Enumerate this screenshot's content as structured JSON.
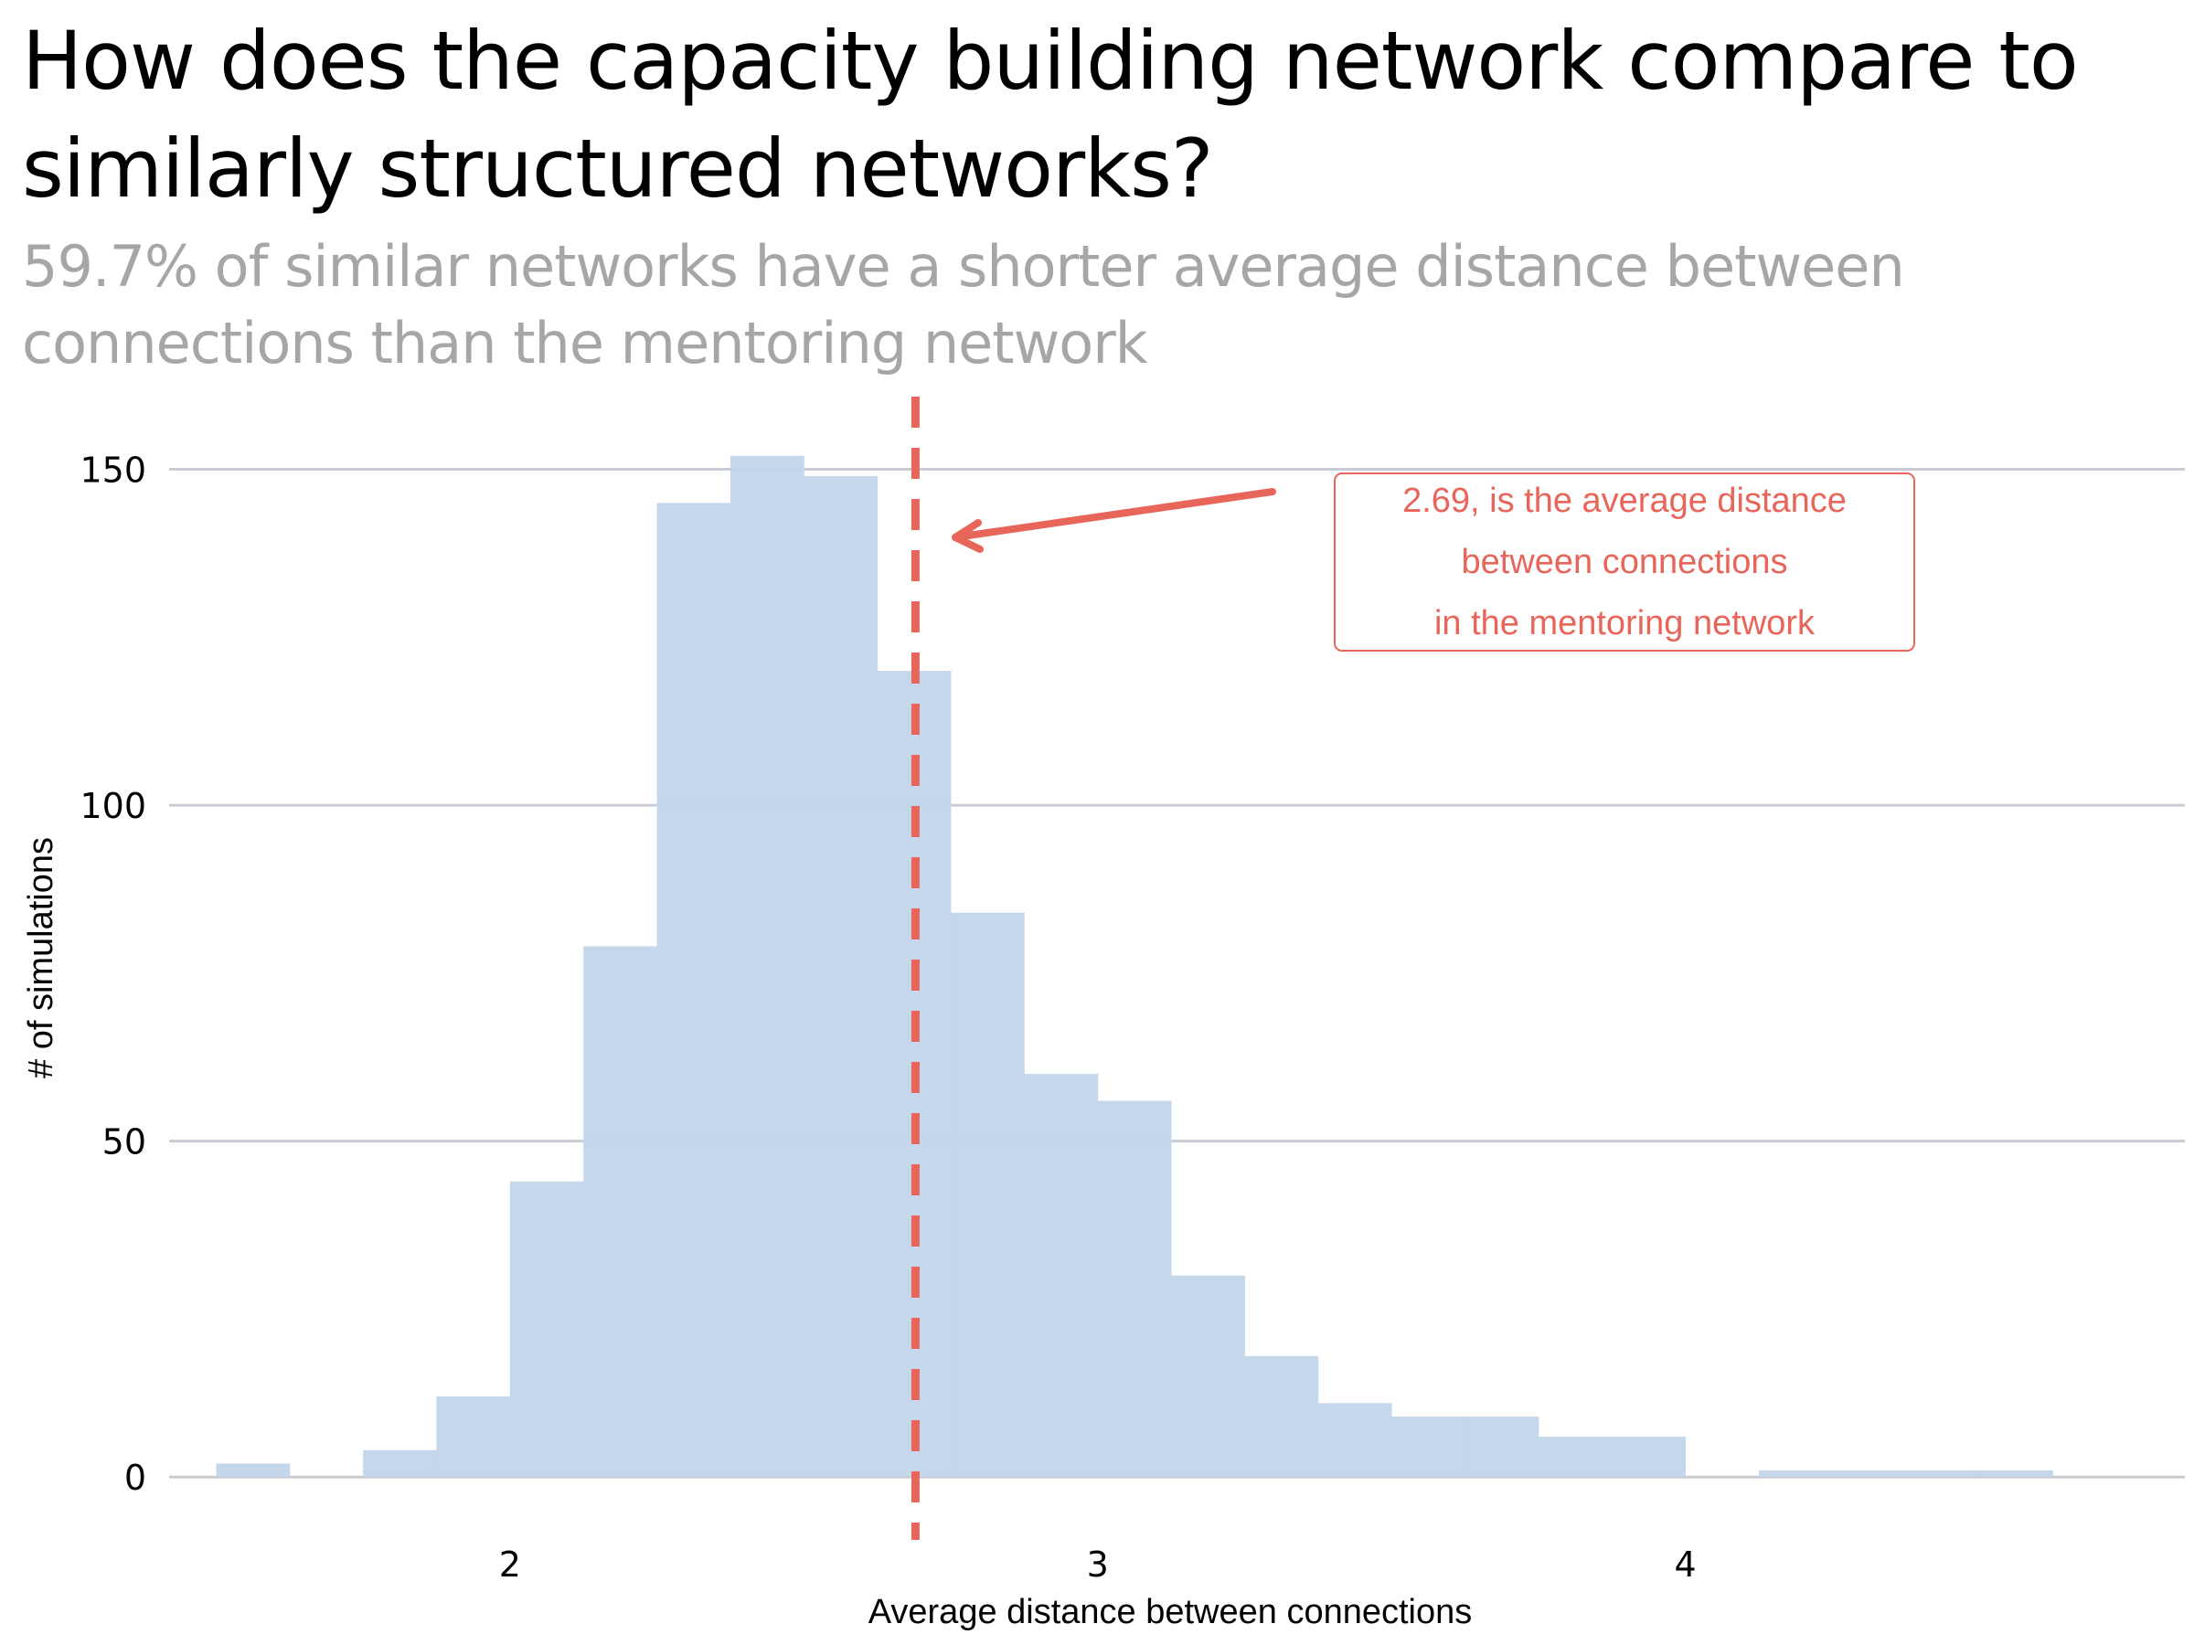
{
  "chart_data": {
    "type": "bar",
    "subtype": "histogram",
    "title": "How does the capacity building network compare to similarly structured networks?",
    "subtitle": "59.7% of similar networks have a shorter average distance between connections than the mentoring network",
    "xlabel": "Average distance between connections",
    "ylabel": "# of simulations",
    "xlim": [
      1.42,
      4.85
    ],
    "ylim": [
      -8,
      160
    ],
    "x_ticks": [
      2,
      3,
      4
    ],
    "y_ticks": [
      0,
      50,
      100,
      150
    ],
    "x_tick_labels": [
      "2",
      "3",
      "4"
    ],
    "y_tick_labels": [
      "0",
      "50",
      "100",
      "150"
    ],
    "grid": "horizontal",
    "bins": [
      {
        "x0": 1.5,
        "x1": 1.625,
        "count": 2
      },
      {
        "x0": 1.625,
        "x1": 1.75,
        "count": 0
      },
      {
        "x0": 1.75,
        "x1": 1.875,
        "count": 4
      },
      {
        "x0": 1.875,
        "x1": 2.0,
        "count": 12
      },
      {
        "x0": 2.0,
        "x1": 2.125,
        "count": 44
      },
      {
        "x0": 2.125,
        "x1": 2.25,
        "count": 79
      },
      {
        "x0": 2.25,
        "x1": 2.375,
        "count": 145
      },
      {
        "x0": 2.375,
        "x1": 2.5,
        "count": 152
      },
      {
        "x0": 2.5,
        "x1": 2.625,
        "count": 149
      },
      {
        "x0": 2.625,
        "x1": 2.75,
        "count": 120
      },
      {
        "x0": 2.75,
        "x1": 2.875,
        "count": 84
      },
      {
        "x0": 2.875,
        "x1": 3.0,
        "count": 60
      },
      {
        "x0": 3.0,
        "x1": 3.125,
        "count": 56
      },
      {
        "x0": 3.125,
        "x1": 3.25,
        "count": 30
      },
      {
        "x0": 3.25,
        "x1": 3.375,
        "count": 18
      },
      {
        "x0": 3.375,
        "x1": 3.5,
        "count": 11
      },
      {
        "x0": 3.5,
        "x1": 3.625,
        "count": 9
      },
      {
        "x0": 3.625,
        "x1": 3.75,
        "count": 9
      },
      {
        "x0": 3.75,
        "x1": 3.875,
        "count": 6
      },
      {
        "x0": 3.875,
        "x1": 4.0,
        "count": 6
      },
      {
        "x0": 4.0,
        "x1": 4.125,
        "count": 0
      },
      {
        "x0": 4.125,
        "x1": 4.25,
        "count": 1
      },
      {
        "x0": 4.25,
        "x1": 4.375,
        "count": 1
      },
      {
        "x0": 4.375,
        "x1": 4.5,
        "count": 1
      },
      {
        "x0": 4.5,
        "x1": 4.625,
        "count": 1
      }
    ],
    "reference_line": {
      "x": 2.69,
      "style": "dashed"
    },
    "annotation": {
      "lines": [
        "2.69, is the average distance",
        "between connections",
        "in the mentoring network"
      ],
      "position": "upper-right"
    },
    "colors": {
      "bars": "#c2d6ea",
      "reference_line": "#e8655a",
      "annotation": "#e8655a",
      "grid": "#c8ccd2",
      "subtitle": "#a6a6a6"
    }
  }
}
